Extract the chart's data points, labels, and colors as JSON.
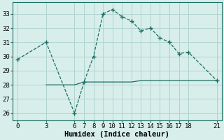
{
  "line1_x": [
    0,
    3,
    6,
    7,
    8,
    9,
    10,
    11,
    12,
    13,
    14,
    15,
    16,
    17,
    18,
    21
  ],
  "line1_y": [
    29.8,
    31.0,
    26.0,
    28.2,
    30.0,
    33.0,
    33.3,
    32.8,
    32.5,
    31.8,
    32.0,
    31.3,
    31.0,
    30.2,
    30.3,
    28.3
  ],
  "line2_x": [
    3,
    6,
    7,
    8,
    9,
    10,
    11,
    12,
    13,
    14,
    15,
    16,
    17,
    18,
    21
  ],
  "line2_y": [
    28.0,
    28.0,
    28.2,
    28.2,
    28.2,
    28.2,
    28.2,
    28.2,
    28.3,
    28.3,
    28.3,
    28.3,
    28.3,
    28.3,
    28.3
  ],
  "line_color": "#1a6e62",
  "bg_color": "#d8eeeb",
  "grid_color": "#b0d4d0",
  "xlabel": "Humidex (Indice chaleur)",
  "xlim": [
    -0.5,
    21.5
  ],
  "ylim": [
    25.5,
    33.8
  ],
  "xticks": [
    0,
    3,
    6,
    7,
    8,
    9,
    10,
    11,
    12,
    13,
    14,
    15,
    16,
    17,
    18,
    21
  ],
  "yticks": [
    26,
    27,
    28,
    29,
    30,
    31,
    32,
    33
  ],
  "tick_fontsize": 6.5,
  "label_fontsize": 7.5
}
